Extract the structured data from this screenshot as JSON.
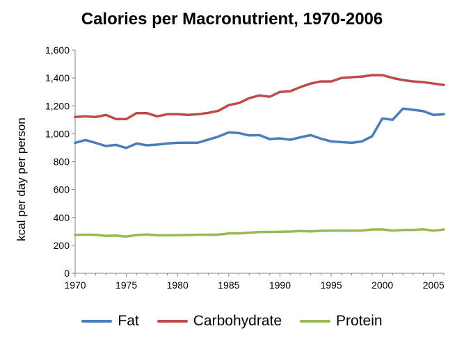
{
  "chart_data": {
    "type": "line",
    "title": "Calories per Macronutrient, 1970-2006",
    "xlabel": "",
    "ylabel": "kcal per day per person",
    "xlim": [
      1970,
      2006
    ],
    "ylim": [
      0,
      1600
    ],
    "xticks": [
      1970,
      1975,
      1980,
      1985,
      1990,
      1995,
      2000,
      2005
    ],
    "xtick_labels": [
      "1970",
      "1975",
      "1980",
      "1985",
      "1990",
      "1995",
      "2000",
      "2005"
    ],
    "yticks": [
      0,
      200,
      400,
      600,
      800,
      1000,
      1200,
      1400,
      1600
    ],
    "ytick_labels": [
      "0",
      "200",
      "400",
      "600",
      "800",
      "1,000",
      "1,200",
      "1,400",
      "1,600"
    ],
    "grid": false,
    "legend_position": "bottom",
    "x": [
      1970,
      1971,
      1972,
      1973,
      1974,
      1975,
      1976,
      1977,
      1978,
      1979,
      1980,
      1981,
      1982,
      1983,
      1984,
      1985,
      1986,
      1987,
      1988,
      1989,
      1990,
      1991,
      1992,
      1993,
      1994,
      1995,
      1996,
      1997,
      1998,
      1999,
      2000,
      2001,
      2002,
      2003,
      2004,
      2005,
      2006
    ],
    "series": [
      {
        "name": "Fat",
        "color": "#4a7ebb",
        "values": [
          935,
          955,
          935,
          912,
          920,
          898,
          930,
          917,
          922,
          930,
          935,
          936,
          936,
          958,
          980,
          1010,
          1005,
          988,
          990,
          962,
          967,
          957,
          975,
          990,
          965,
          945,
          940,
          935,
          945,
          982,
          1110,
          1100,
          1180,
          1172,
          1162,
          1135,
          1140
        ]
      },
      {
        "name": "Carbohydrate",
        "color": "#be4b48",
        "values": [
          1120,
          1125,
          1120,
          1135,
          1105,
          1105,
          1148,
          1148,
          1125,
          1140,
          1140,
          1135,
          1140,
          1150,
          1165,
          1205,
          1220,
          1255,
          1275,
          1265,
          1300,
          1305,
          1335,
          1360,
          1375,
          1375,
          1400,
          1405,
          1410,
          1420,
          1420,
          1400,
          1385,
          1375,
          1370,
          1360,
          1350
        ]
      },
      {
        "name": "Protein",
        "color": "#98b954",
        "values": [
          275,
          276,
          275,
          268,
          270,
          263,
          274,
          278,
          272,
          272,
          273,
          274,
          276,
          276,
          277,
          285,
          286,
          290,
          296,
          296,
          297,
          299,
          303,
          300,
          304,
          305,
          306,
          305,
          306,
          314,
          314,
          306,
          310,
          310,
          315,
          305,
          314
        ]
      }
    ]
  }
}
